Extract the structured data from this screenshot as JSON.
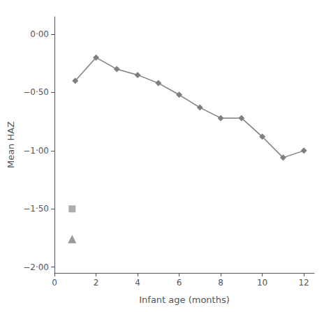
{
  "chart_data": {
    "type": "line",
    "xlabel": "Infant age (months)",
    "ylabel": "Mean HAZ",
    "x": [
      1,
      2,
      3,
      4,
      5,
      6,
      7,
      8,
      9,
      10,
      11,
      12
    ],
    "series": [
      {
        "color": "#7f7f7f",
        "marker": "diamond",
        "values": [
          -0.4,
          -0.2,
          -0.3,
          -0.35,
          -0.42,
          -0.52,
          -0.63,
          -0.72,
          -0.72,
          -0.88,
          -1.06,
          -1.0
        ]
      },
      {
        "type": "scatter",
        "color": "#999999",
        "marker": "square",
        "x": [
          0.85
        ],
        "values": [
          -1.5
        ]
      },
      {
        "type": "scatter",
        "color": "#7f7f7f",
        "marker": "triangle",
        "x": [
          0.85
        ],
        "values": [
          -1.76
        ]
      }
    ],
    "xlim": [
      0,
      12.5
    ],
    "ylim": [
      -2.05,
      0.15
    ],
    "xticks": [
      0,
      2,
      4,
      6,
      8,
      10,
      12
    ],
    "yticks": [
      {
        "value": 0.0,
        "label": "0·00"
      },
      {
        "value": -0.5,
        "label": "−0·50"
      },
      {
        "value": -1.0,
        "label": "−1·00"
      },
      {
        "value": -1.5,
        "label": "−1·50"
      },
      {
        "value": -2.0,
        "label": "−2·00"
      }
    ],
    "grid": false
  }
}
